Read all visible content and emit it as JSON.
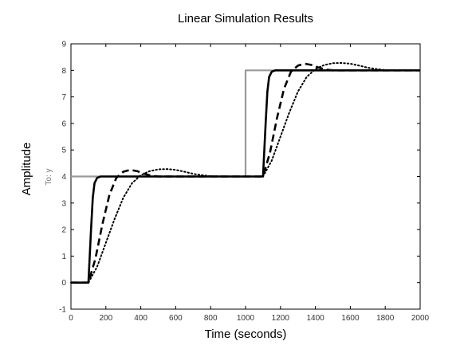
{
  "chart_data": {
    "type": "line",
    "title": "Linear Simulation Results",
    "xlabel": "Time (seconds)",
    "ylabel": "Amplitude",
    "ysublabel": "To: y",
    "xlim": [
      0,
      2000
    ],
    "ylim": [
      -1,
      9
    ],
    "xticks": [
      "0",
      "200",
      "400",
      "600",
      "800",
      "1000",
      "1200",
      "1400",
      "1600",
      "1800",
      "2000"
    ],
    "yticks": [
      "-1",
      "0",
      "1",
      "2",
      "3",
      "4",
      "5",
      "6",
      "7",
      "8",
      "9"
    ],
    "grid": false,
    "series": [
      {
        "style": "solid",
        "color": "#999999",
        "width": 2.2,
        "x": [
          0,
          100,
          100,
          1000,
          1000,
          2000
        ],
        "y": [
          4,
          4,
          4,
          4,
          8,
          8
        ]
      },
      {
        "style": "solid",
        "color": "#000000",
        "width": 2.6,
        "x": [
          0,
          100,
          115,
          125,
          135,
          150,
          170,
          200,
          1000,
          1100,
          1115,
          1125,
          1135,
          1150,
          1170,
          1200,
          2000
        ],
        "y": [
          0,
          0,
          2.0,
          3.2,
          3.75,
          3.95,
          4.0,
          4.0,
          4.0,
          4.0,
          6.0,
          7.2,
          7.75,
          7.95,
          8.0,
          8.0,
          8.0
        ]
      },
      {
        "style": "dashed",
        "color": "#000000",
        "width": 2.6,
        "x": [
          0,
          100,
          140,
          180,
          220,
          260,
          300,
          340,
          380,
          420,
          460,
          500,
          600,
          1100,
          1140,
          1180,
          1220,
          1260,
          1300,
          1340,
          1380,
          1420,
          1460,
          1500,
          1600,
          2000
        ],
        "y": [
          0,
          0,
          0.9,
          2.2,
          3.3,
          3.95,
          4.18,
          4.25,
          4.2,
          4.1,
          4.03,
          4.0,
          4.0,
          4.0,
          4.9,
          6.2,
          7.3,
          7.95,
          8.18,
          8.25,
          8.2,
          8.1,
          8.03,
          8.0,
          8.0,
          8.0
        ]
      },
      {
        "style": "dotted",
        "color": "#000000",
        "width": 2.0,
        "x": [
          0,
          100,
          150,
          200,
          250,
          300,
          350,
          400,
          450,
          500,
          550,
          600,
          650,
          700,
          750,
          800,
          900,
          1000,
          1100,
          1150,
          1200,
          1250,
          1300,
          1350,
          1400,
          1450,
          1500,
          1550,
          1600,
          1650,
          1700,
          1750,
          1800,
          1900,
          2000
        ],
        "y": [
          0,
          0,
          0.6,
          1.5,
          2.4,
          3.2,
          3.75,
          4.05,
          4.2,
          4.27,
          4.28,
          4.25,
          4.18,
          4.1,
          4.05,
          4.01,
          4.0,
          4.0,
          4.0,
          4.6,
          5.5,
          6.4,
          7.2,
          7.75,
          8.05,
          8.2,
          8.27,
          8.28,
          8.25,
          8.18,
          8.1,
          8.05,
          8.01,
          8.0,
          8.0
        ]
      }
    ]
  }
}
